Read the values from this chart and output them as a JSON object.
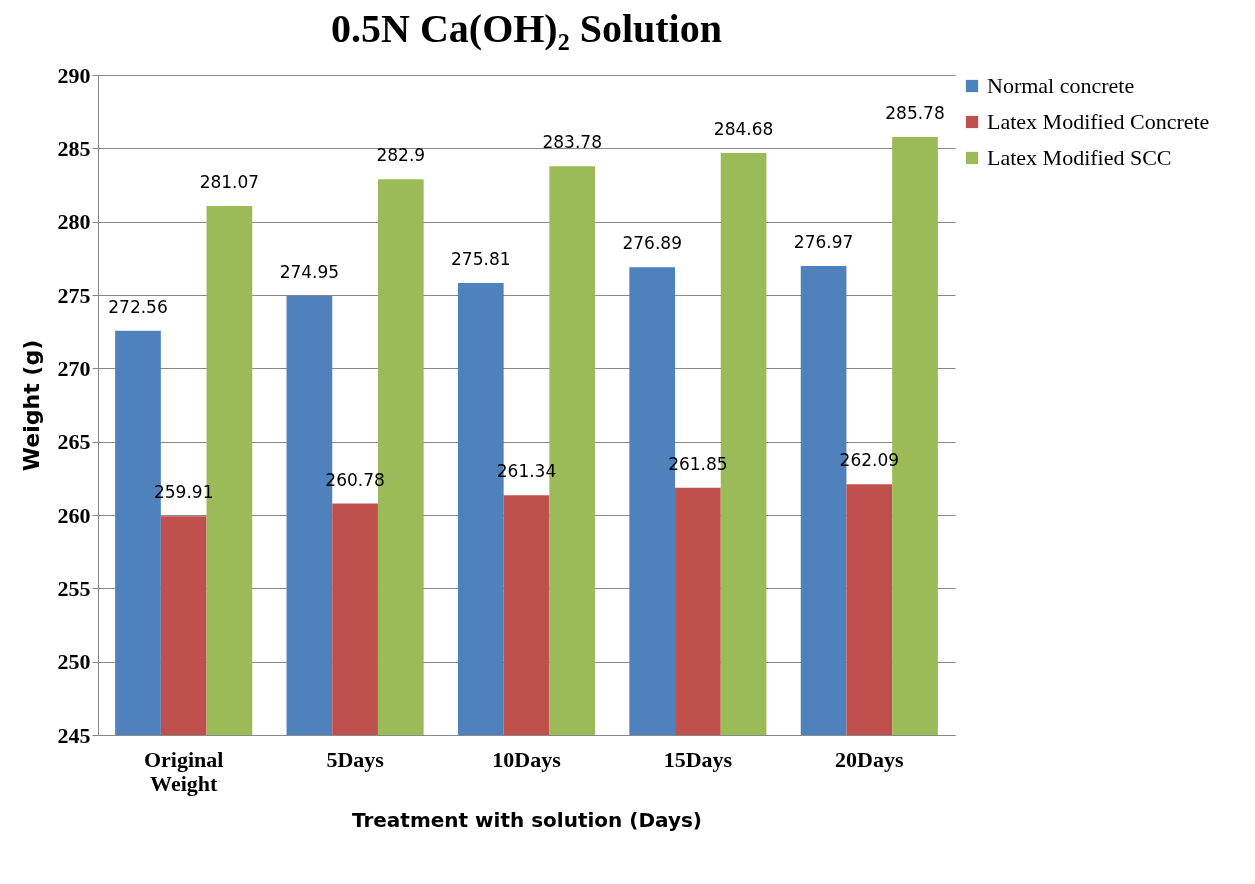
{
  "chart_data": {
    "type": "bar",
    "title": "0.5N Ca(OH)₂ Solution",
    "xlabel": "Treatment with solution (Days)",
    "ylabel": "Weight (g)",
    "categories": [
      "Original Weight",
      "5Days",
      "10Days",
      "15Days",
      "20Days"
    ],
    "series": [
      {
        "name": "Normal concrete",
        "color": "#4f81bd",
        "values": [
          272.56,
          274.95,
          275.81,
          276.89,
          276.97
        ]
      },
      {
        "name": "Latex Modified Concrete",
        "color": "#c0504d",
        "values": [
          259.91,
          260.78,
          261.34,
          261.85,
          262.09
        ]
      },
      {
        "name": "Latex Modified SCC",
        "color": "#9bbb59",
        "values": [
          281.07,
          282.9,
          283.78,
          284.68,
          285.78
        ]
      }
    ],
    "ylim": [
      245,
      290
    ],
    "yticks": [
      245,
      250,
      255,
      260,
      265,
      270,
      275,
      280,
      285,
      290
    ],
    "grid": "y",
    "legend": "right",
    "data_labels": true
  }
}
